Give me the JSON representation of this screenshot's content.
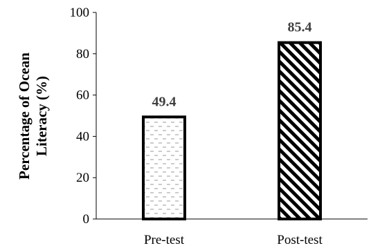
{
  "chart_data": {
    "type": "bar",
    "categories": [
      "Pre-test",
      "Post-test"
    ],
    "values": [
      49.4,
      85.4
    ],
    "data_labels": [
      "49.4",
      "85.4"
    ],
    "title": "",
    "xlabel": "",
    "ylabel_lines": [
      "Percentage of Ocean",
      "Literacy (%)"
    ],
    "ylim": [
      0,
      100
    ],
    "yticks": [
      0,
      20,
      40,
      60,
      80,
      100
    ],
    "grid": false,
    "legend": "none",
    "bar_patterns": [
      "dashed-horizontal",
      "diagonal-stripes"
    ],
    "bar_edge_color": "#000000",
    "data_label_color": "#404040"
  }
}
